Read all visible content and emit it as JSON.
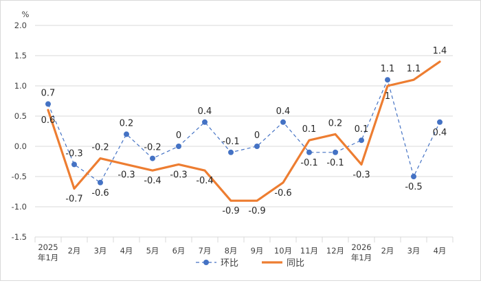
{
  "chart_data": {
    "type": "line",
    "unit": "%",
    "categories": [
      "2025\n年1月",
      "2月",
      "3月",
      "4月",
      "5月",
      "6月",
      "7月",
      "8月",
      "9月",
      "10月",
      "11月",
      "12月",
      "2026\n年1月",
      "2月",
      "3月",
      "4月"
    ],
    "ylim": [
      -1.5,
      2.0
    ],
    "yticks": [
      "2.0",
      "1.5",
      "1.0",
      "0.5",
      "0.0",
      "-0.5",
      "-1.0",
      "-1.5"
    ],
    "grid": true,
    "legend_position": "bottom",
    "series": [
      {
        "name": "环比",
        "style": "dashed-with-markers",
        "color": "#4472c4",
        "values": [
          0.7,
          -0.3,
          -0.6,
          0.2,
          -0.2,
          0,
          0.4,
          -0.1,
          0,
          0.4,
          -0.1,
          -0.1,
          0.1,
          1.1,
          -0.5,
          0.4
        ],
        "labels": [
          "0.7",
          "-0.3",
          "-0.6",
          "0.2",
          "-0.2",
          "0",
          "0.4",
          "-0.1",
          "0",
          "0.4",
          "-0.1",
          "-0.1",
          "0.1",
          "1.1",
          "-0.5",
          "0.4"
        ]
      },
      {
        "name": "同比",
        "style": "solid-thick",
        "color": "#ed7d31",
        "values": [
          0.6,
          -0.7,
          -0.2,
          -0.3,
          -0.4,
          -0.3,
          -0.4,
          -0.9,
          -0.9,
          -0.6,
          0.1,
          0.2,
          -0.3,
          1.0,
          1.1,
          1.4
        ],
        "labels": [
          "0.6",
          "-0.7",
          "-0.2",
          "-0.3",
          "-0.4",
          "-0.3",
          "-0.4",
          "-0.9",
          "-0.9",
          "-0.6",
          "0.1",
          "0.2",
          "-0.3",
          "1",
          "1.1",
          "1.4"
        ]
      }
    ]
  }
}
